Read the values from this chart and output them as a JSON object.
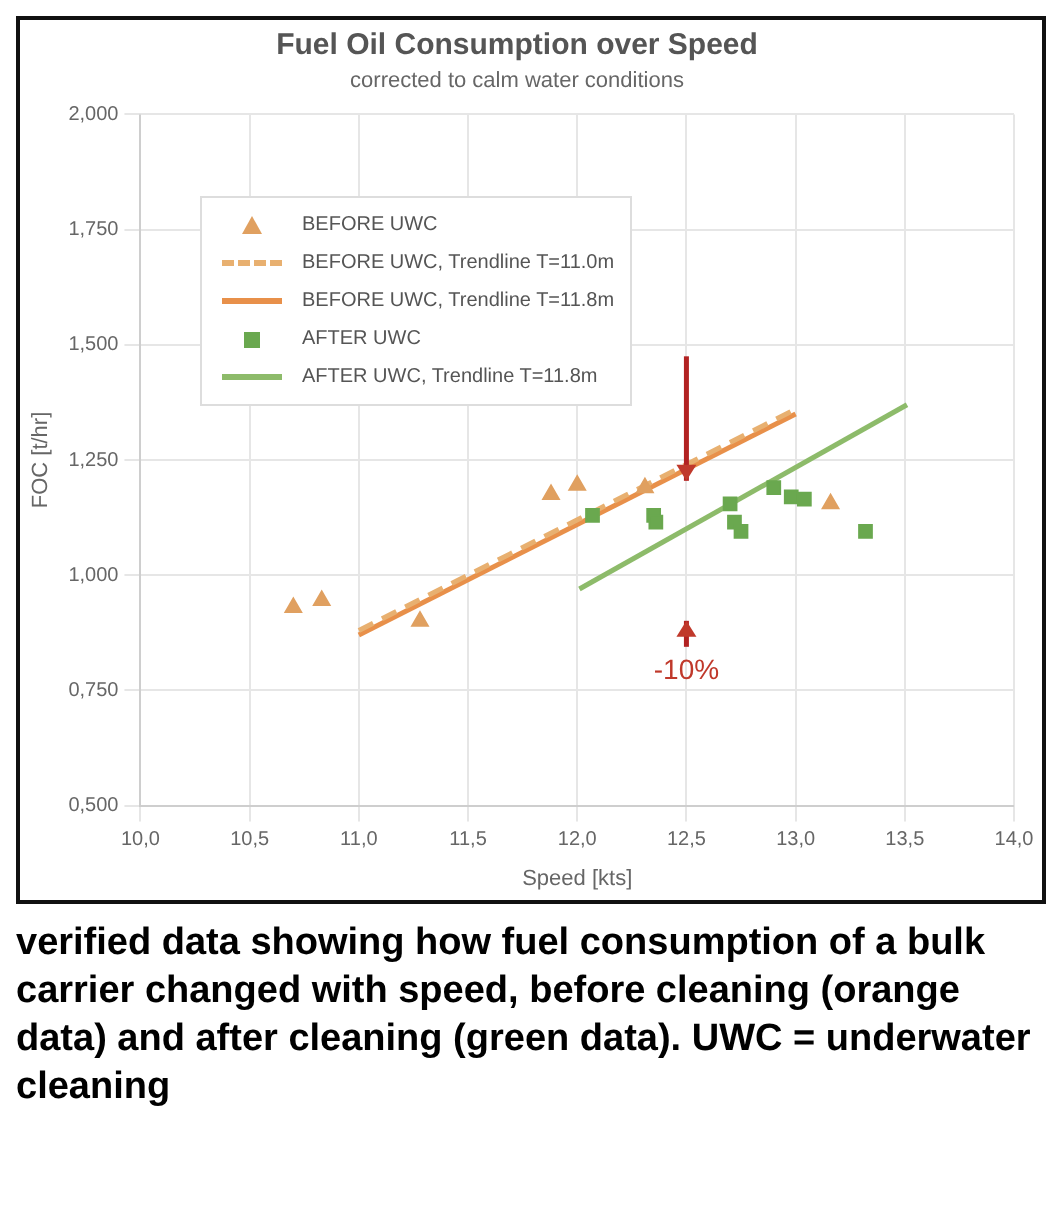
{
  "chart_data": {
    "type": "scatter",
    "title": "Fuel Oil Consumption over Speed",
    "subtitle": "corrected to calm water conditions",
    "xlabel": "Speed [kts]",
    "ylabel": "FOC [t/hr]",
    "xlim": [
      10,
      14
    ],
    "xticks": [
      {
        "value": 10,
        "label": "10,0"
      },
      {
        "value": 10.5,
        "label": "10,5"
      },
      {
        "value": 11,
        "label": "11,0"
      },
      {
        "value": 11.5,
        "label": "11,5"
      },
      {
        "value": 12,
        "label": "12,0"
      },
      {
        "value": 12.5,
        "label": "12,5"
      },
      {
        "value": 13,
        "label": "13,0"
      },
      {
        "value": 13.5,
        "label": "13,5"
      },
      {
        "value": 14,
        "label": "14,0"
      }
    ],
    "ylim": [
      0.5,
      2
    ],
    "yticks": [
      {
        "value": 0.5,
        "label": "0,500"
      },
      {
        "value": 0.75,
        "label": "0,750"
      },
      {
        "value": 1,
        "label": "1,000"
      },
      {
        "value": 1.25,
        "label": "1,250"
      },
      {
        "value": 1.5,
        "label": "1,500"
      },
      {
        "value": 1.75,
        "label": "1,750"
      },
      {
        "value": 2,
        "label": "2,000"
      }
    ],
    "grid": true,
    "legend": "top left",
    "series": [
      {
        "name": "BEFORE UWC",
        "marker": "triangle",
        "color": "#e0a060",
        "x": [
          10.7,
          10.83,
          11.28,
          11.88,
          12.0,
          12.31,
          13.16
        ],
        "values": [
          0.93,
          0.945,
          0.9,
          1.175,
          1.195,
          1.19,
          1.155
        ]
      },
      {
        "name": "BEFORE UWC, Trendline T=11.0m",
        "type": "line",
        "line_style": "dashed",
        "marker": "none",
        "color": "#e8b070",
        "x": [
          11.0,
          13.0
        ],
        "values": [
          0.88,
          1.36
        ]
      },
      {
        "name": "BEFORE UWC, Trendline T=11.8m",
        "type": "line",
        "line_style": "solid",
        "marker": "none",
        "color": "#e8904a",
        "x": [
          11.0,
          13.0
        ],
        "values": [
          0.87,
          1.35
        ]
      },
      {
        "name": "AFTER UWC",
        "marker": "square",
        "color": "#6aa84f",
        "x": [
          12.07,
          12.35,
          12.36,
          12.7,
          12.72,
          12.75,
          12.9,
          12.98,
          13.04,
          13.32
        ],
        "values": [
          1.13,
          1.13,
          1.115,
          1.155,
          1.115,
          1.095,
          1.19,
          1.17,
          1.165,
          1.095
        ]
      },
      {
        "name": "AFTER UWC, Trendline T=11.8m",
        "type": "line",
        "line_style": "solid",
        "marker": "none",
        "color": "#8dbb6a",
        "x": [
          12.01,
          13.51
        ],
        "values": [
          0.97,
          1.37
        ]
      }
    ],
    "annotations": [
      "-10%",
      "verified data showing how fuel consumption of a bulk carrier changed with speed, before cleaning (orange data) and after cleaning (green data). UWC = underwater cleaning"
    ]
  }
}
